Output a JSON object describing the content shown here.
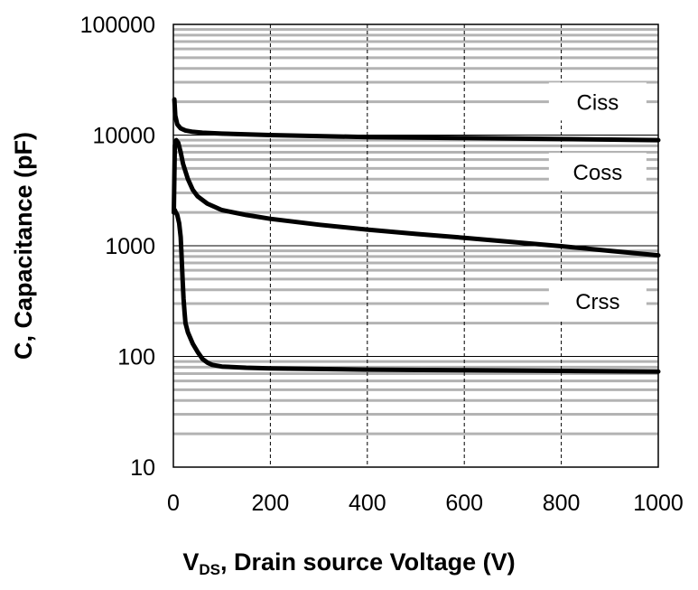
{
  "chart_data": {
    "type": "line",
    "yscale": "log",
    "xlabel_main": "V",
    "xlabel_sub": "DS",
    "xlabel_rest": ", Drain source Voltage (V)",
    "ylabel": "C, Capacitance (pF)",
    "xlim": [
      0,
      1000
    ],
    "ylim": [
      10,
      100000
    ],
    "xticks": [
      0,
      200,
      400,
      600,
      800,
      1000
    ],
    "xtick_labels": [
      "0",
      "200",
      "400",
      "600",
      "800",
      "1000"
    ],
    "yticks": [
      10,
      100,
      1000,
      10000,
      100000
    ],
    "ytick_labels": [
      "10",
      "100",
      "1000",
      "10000",
      "100000"
    ],
    "grid": true,
    "colors": {
      "line": "#000000",
      "minor_grid": "#b3b3b3",
      "major_grid": "#000000"
    },
    "series": [
      {
        "name": "Ciss",
        "x": [
          2,
          4,
          8,
          15,
          25,
          40,
          60,
          100,
          200,
          400,
          600,
          800,
          1000
        ],
        "y": [
          21000,
          15000,
          12500,
          11500,
          11000,
          10700,
          10500,
          10300,
          10000,
          9600,
          9400,
          9200,
          9000
        ]
      },
      {
        "name": "Coss",
        "x": [
          1,
          3,
          6,
          10,
          15,
          20,
          30,
          40,
          50,
          70,
          100,
          150,
          200,
          300,
          400,
          500,
          600,
          700,
          800,
          900,
          1000
        ],
        "y": [
          2000,
          8000,
          9000,
          8500,
          7000,
          5500,
          4000,
          3200,
          2800,
          2400,
          2100,
          1900,
          1750,
          1550,
          1400,
          1280,
          1180,
          1080,
          990,
          900,
          820
        ]
      },
      {
        "name": "Crss",
        "x": [
          1,
          3,
          5,
          8,
          12,
          15,
          17,
          19,
          21,
          23,
          25,
          30,
          40,
          50,
          60,
          70,
          80,
          100,
          150,
          200,
          400,
          600,
          800,
          1000
        ],
        "y": [
          2000,
          2100,
          2000,
          1900,
          1600,
          1200,
          800,
          500,
          330,
          250,
          200,
          165,
          130,
          110,
          95,
          88,
          84,
          81,
          79,
          78,
          76,
          75,
          74,
          73
        ]
      }
    ],
    "annotations": [
      {
        "text": "Ciss",
        "at_x": 875,
        "at_y": 19000
      },
      {
        "text": "Coss",
        "at_x": 875,
        "at_y": 4400
      },
      {
        "text": "Crss",
        "at_x": 875,
        "at_y": 300
      }
    ]
  }
}
